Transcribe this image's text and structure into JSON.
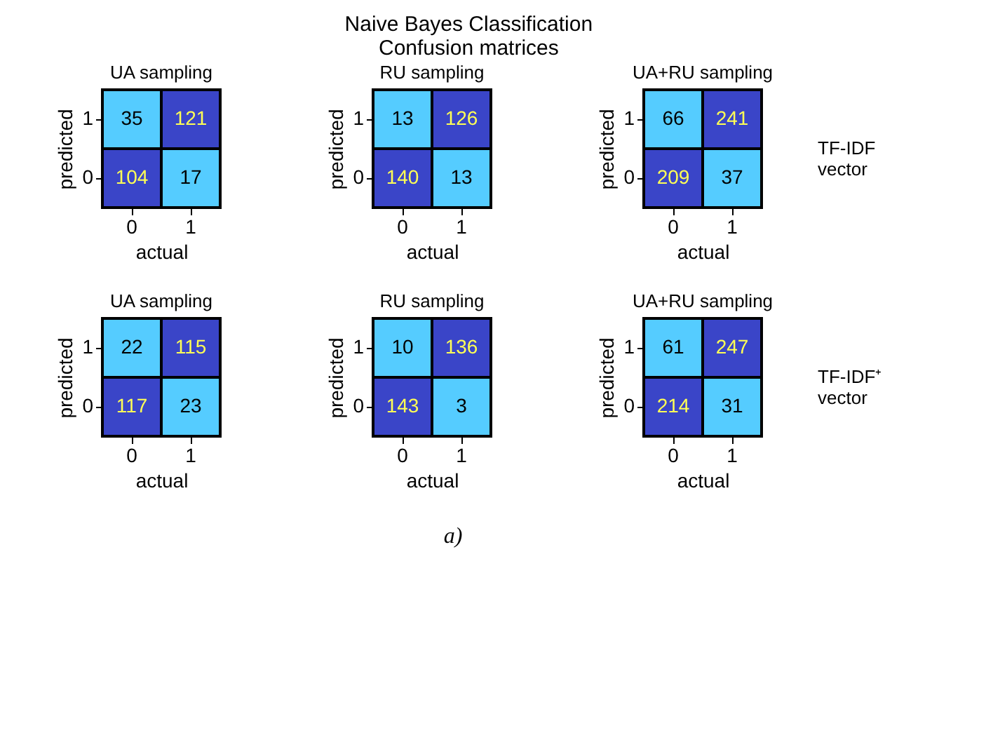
{
  "chart_data": [
    {
      "type": "heatmap",
      "title": "UA sampling",
      "xlabel": "actual",
      "ylabel": "predicted",
      "categories": [
        "0",
        "1"
      ],
      "y_categories": [
        "1",
        "0"
      ],
      "cells": [
        [
          35,
          121
        ],
        [
          104,
          17
        ]
      ],
      "colors": [
        [
          "#55ccff",
          "#3a45c8"
        ],
        [
          "#3a45c8",
          "#55ccff"
        ]
      ],
      "data_labels": true,
      "annotations": [
        "Naive Bayes Classification\nConfusion matrices",
        "a)"
      ]
    },
    {
      "type": "heatmap",
      "title": "RU sampling",
      "xlabel": "actual",
      "ylabel": "predicted",
      "categories": [
        "0",
        "1"
      ],
      "y_categories": [
        "1",
        "0"
      ],
      "cells": [
        [
          13,
          126
        ],
        [
          140,
          13
        ]
      ],
      "colors": [
        [
          "#55ccff",
          "#3a45c8"
        ],
        [
          "#3a45c8",
          "#55ccff"
        ]
      ],
      "data_labels": true
    },
    {
      "type": "heatmap",
      "title": "UA+RU sampling",
      "xlabel": "actual",
      "ylabel": "predicted",
      "categories": [
        "0",
        "1"
      ],
      "y_categories": [
        "1",
        "0"
      ],
      "cells": [
        [
          66,
          241
        ],
        [
          209,
          37
        ]
      ],
      "colors": [
        [
          "#55ccff",
          "#3a45c8"
        ],
        [
          "#3a45c8",
          "#55ccff"
        ]
      ],
      "data_labels": true,
      "annotations": [
        "TF-IDF\nvector"
      ]
    },
    {
      "type": "heatmap",
      "title": "UA sampling",
      "xlabel": "actual",
      "ylabel": "predicted",
      "categories": [
        "0",
        "1"
      ],
      "y_categories": [
        "1",
        "0"
      ],
      "cells": [
        [
          22,
          115
        ],
        [
          117,
          23
        ]
      ],
      "colors": [
        [
          "#55ccff",
          "#3a45c8"
        ],
        [
          "#3a45c8",
          "#55ccff"
        ]
      ],
      "data_labels": true
    },
    {
      "type": "heatmap",
      "title": "RU sampling",
      "xlabel": "actual",
      "ylabel": "predicted",
      "categories": [
        "0",
        "1"
      ],
      "y_categories": [
        "1",
        "0"
      ],
      "cells": [
        [
          10,
          136
        ],
        [
          143,
          3
        ]
      ],
      "colors": [
        [
          "#55ccff",
          "#3a45c8"
        ],
        [
          "#3a45c8",
          "#55ccff"
        ]
      ],
      "data_labels": true
    },
    {
      "type": "heatmap",
      "title": "UA+RU sampling",
      "xlabel": "actual",
      "ylabel": "predicted",
      "categories": [
        "0",
        "1"
      ],
      "y_categories": [
        "1",
        "0"
      ],
      "cells": [
        [
          61,
          247
        ],
        [
          214,
          31
        ]
      ],
      "colors": [
        [
          "#55ccff",
          "#3a45c8"
        ],
        [
          "#3a45c8",
          "#55ccff"
        ]
      ],
      "data_labels": true,
      "annotations": [
        "TF-IDF⁺\nvector"
      ]
    }
  ]
}
